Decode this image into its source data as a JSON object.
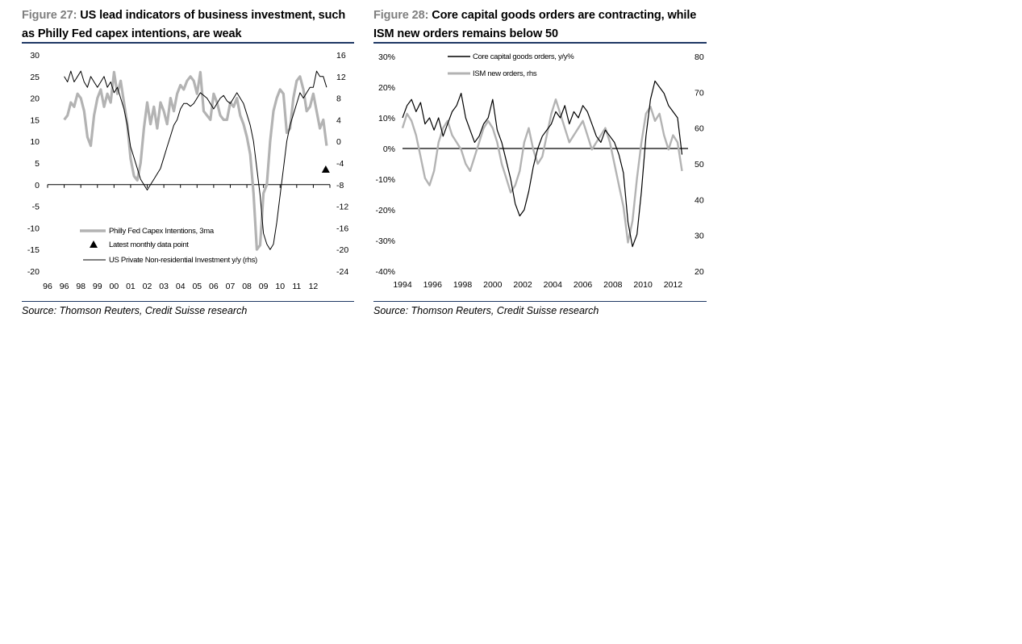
{
  "chart_data": [
    {
      "type": "line",
      "figure_number": "Figure 27:",
      "title": "US lead indicators of business investment, such as Philly Fed capex intentions, are weak",
      "source": "Source: Thomson Reuters, Credit Suisse research",
      "categories": [
        "96",
        "96",
        "98",
        "99",
        "00",
        "01",
        "02",
        "03",
        "04",
        "05",
        "06",
        "07",
        "08",
        "09",
        "10",
        "11",
        "12"
      ],
      "yticks_left": [
        "30",
        "25",
        "20",
        "15",
        "10",
        "5",
        "0",
        "-5",
        "-10",
        "-15",
        "-20"
      ],
      "yticks_right": [
        "16",
        "12",
        "8",
        "4",
        "0",
        "-4",
        "-8",
        "-12",
        "-16",
        "-20",
        "-24"
      ],
      "ylim_left": [
        -20,
        30
      ],
      "ylim_right": [
        -24,
        16
      ],
      "xlim": [
        1996.0,
        2013.0
      ],
      "legend": {
        "philly": "Philly Fed Capex Intentions, 3ma",
        "latest": "Latest monthly data point",
        "invest": "US Private Non-residential Investment y/y (rhs)"
      },
      "series": [
        {
          "name": "Philly Fed Capex Intentions, 3ma",
          "axis": "left",
          "color": "#b3b3b3",
          "x": [
            1997.0,
            1997.2,
            1997.4,
            1997.6,
            1997.8,
            1998.0,
            1998.2,
            1998.4,
            1998.6,
            1998.8,
            1999.0,
            1999.2,
            1999.4,
            1999.6,
            1999.8,
            2000.0,
            2000.2,
            2000.4,
            2000.6,
            2000.8,
            2001.0,
            2001.2,
            2001.4,
            2001.6,
            2001.8,
            2002.0,
            2002.2,
            2002.4,
            2002.6,
            2002.8,
            2003.0,
            2003.2,
            2003.4,
            2003.6,
            2003.8,
            2004.0,
            2004.2,
            2004.4,
            2004.6,
            2004.8,
            2005.0,
            2005.2,
            2005.4,
            2005.6,
            2005.8,
            2006.0,
            2006.2,
            2006.4,
            2006.6,
            2006.8,
            2007.0,
            2007.2,
            2007.4,
            2007.6,
            2007.8,
            2008.0,
            2008.2,
            2008.4,
            2008.6,
            2008.8,
            2009.0,
            2009.2,
            2009.4,
            2009.6,
            2009.8,
            2010.0,
            2010.2,
            2010.4,
            2010.6,
            2010.8,
            2011.0,
            2011.2,
            2011.4,
            2011.6,
            2011.8,
            2012.0,
            2012.2,
            2012.4,
            2012.6,
            2012.8
          ],
          "y": [
            15,
            16,
            19,
            18,
            21,
            20,
            17,
            11,
            9,
            16,
            20,
            22,
            18,
            21,
            19,
            26,
            21,
            24,
            19,
            14,
            6,
            2,
            1,
            5,
            13,
            19,
            14,
            18,
            13,
            19,
            17,
            14,
            20,
            17,
            21,
            23,
            22,
            24,
            25,
            24,
            21,
            26,
            17,
            16,
            15,
            21,
            19,
            16,
            15,
            15,
            19,
            18,
            20,
            16,
            14,
            11,
            7,
            -2,
            -15,
            -14,
            -2,
            0,
            10,
            17,
            20,
            22,
            21,
            12,
            13,
            20,
            24,
            25,
            22,
            17,
            18,
            21,
            17,
            13,
            15,
            9
          ],
          "latest_point": {
            "x": 2012.75,
            "y": 3.5
          }
        },
        {
          "name": "US Private Non-residential Investment y/y (rhs)",
          "axis": "right",
          "color": "#000000",
          "x": [
            1997.0,
            1997.2,
            1997.4,
            1997.6,
            1997.8,
            1998.0,
            1998.2,
            1998.4,
            1998.6,
            1998.8,
            1999.0,
            1999.2,
            1999.4,
            1999.6,
            1999.8,
            2000.0,
            2000.2,
            2000.4,
            2000.6,
            2000.8,
            2001.0,
            2001.2,
            2001.4,
            2001.6,
            2001.8,
            2002.0,
            2002.2,
            2002.4,
            2002.6,
            2002.8,
            2003.0,
            2003.2,
            2003.4,
            2003.6,
            2003.8,
            2004.0,
            2004.2,
            2004.4,
            2004.6,
            2004.8,
            2005.0,
            2005.2,
            2005.4,
            2005.6,
            2005.8,
            2006.0,
            2006.2,
            2006.4,
            2006.6,
            2006.8,
            2007.0,
            2007.2,
            2007.4,
            2007.6,
            2007.8,
            2008.0,
            2008.2,
            2008.4,
            2008.6,
            2008.8,
            2009.0,
            2009.2,
            2009.4,
            2009.6,
            2009.8,
            2010.0,
            2010.2,
            2010.4,
            2010.6,
            2010.8,
            2011.0,
            2011.2,
            2011.4,
            2011.6,
            2011.8,
            2012.0,
            2012.2,
            2012.4,
            2012.6,
            2012.8
          ],
          "y": [
            12,
            11,
            13,
            11,
            12,
            13,
            11,
            10,
            12,
            11,
            10,
            11,
            12,
            10,
            11,
            9,
            10,
            8,
            6,
            3,
            -1,
            -3,
            -5,
            -7,
            -8,
            -9,
            -8,
            -7,
            -6,
            -5,
            -3,
            -1,
            1,
            3,
            4,
            6,
            7,
            7,
            6.5,
            7,
            8,
            9,
            8.5,
            8,
            7,
            6,
            7,
            8,
            8.5,
            7.5,
            7,
            8,
            9,
            8,
            7,
            5,
            3,
            0,
            -5,
            -10,
            -17,
            -19,
            -20,
            -19,
            -15,
            -10,
            -5,
            0,
            3,
            5,
            7,
            9,
            8,
            9,
            10,
            10,
            13,
            12,
            12,
            10
          ]
        }
      ]
    },
    {
      "type": "line",
      "figure_number": "Figure 28:",
      "title": "Core capital goods orders are contracting, while ISM new orders remains below 50",
      "source": "Source: Thomson Reuters, Credit Suisse research",
      "categories": [
        "1994",
        "1996",
        "1998",
        "2000",
        "2002",
        "2004",
        "2006",
        "2008",
        "2010",
        "2012"
      ],
      "yticks_left": [
        "30%",
        "20%",
        "10%",
        "0%",
        "-10%",
        "-20%",
        "-30%",
        "-40%"
      ],
      "yticks_right": [
        "80",
        "70",
        "60",
        "50",
        "40",
        "30",
        "20"
      ],
      "ylim_left": [
        -40,
        30
      ],
      "ylim_right": [
        20,
        80
      ],
      "xlim": [
        1994.0,
        2013.0
      ],
      "legend": {
        "core": "Core capital goods orders, y/y%",
        "ism": "ISM new orders, rhs"
      },
      "series": [
        {
          "name": "Core capital goods orders, y/y%",
          "axis": "left",
          "color": "#000000",
          "x": [
            1994.0,
            1994.3,
            1994.6,
            1994.9,
            1995.2,
            1995.5,
            1995.8,
            1996.1,
            1996.4,
            1996.7,
            1997.0,
            1997.3,
            1997.6,
            1997.9,
            1998.2,
            1998.5,
            1998.8,
            1999.1,
            1999.4,
            1999.7,
            2000.0,
            2000.3,
            2000.6,
            2000.9,
            2001.2,
            2001.5,
            2001.8,
            2002.1,
            2002.4,
            2002.7,
            2003.0,
            2003.3,
            2003.6,
            2003.9,
            2004.2,
            2004.5,
            2004.8,
            2005.1,
            2005.4,
            2005.7,
            2006.0,
            2006.3,
            2006.6,
            2006.9,
            2007.2,
            2007.5,
            2007.8,
            2008.1,
            2008.4,
            2008.7,
            2009.0,
            2009.3,
            2009.6,
            2009.9,
            2010.2,
            2010.5,
            2010.8,
            2011.1,
            2011.4,
            2011.7,
            2012.0,
            2012.3,
            2012.6
          ],
          "y": [
            10,
            14,
            16,
            12,
            15,
            8,
            10,
            6,
            10,
            4,
            8,
            12,
            14,
            18,
            10,
            6,
            2,
            4,
            8,
            10,
            16,
            6,
            2,
            -4,
            -10,
            -18,
            -22,
            -20,
            -14,
            -6,
            0,
            4,
            6,
            8,
            12,
            10,
            14,
            8,
            12,
            10,
            14,
            12,
            8,
            4,
            2,
            6,
            4,
            2,
            -2,
            -8,
            -24,
            -32,
            -28,
            -14,
            4,
            16,
            22,
            20,
            18,
            14,
            12,
            10,
            -2
          ]
        },
        {
          "name": "ISM new orders, rhs",
          "axis": "right",
          "color": "#b3b3b3",
          "x": [
            1994.0,
            1994.3,
            1994.6,
            1994.9,
            1995.2,
            1995.5,
            1995.8,
            1996.1,
            1996.4,
            1996.7,
            1997.0,
            1997.3,
            1997.6,
            1997.9,
            1998.2,
            1998.5,
            1998.8,
            1999.1,
            1999.4,
            1999.7,
            2000.0,
            2000.3,
            2000.6,
            2000.9,
            2001.2,
            2001.5,
            2001.8,
            2002.1,
            2002.4,
            2002.7,
            2003.0,
            2003.3,
            2003.6,
            2003.9,
            2004.2,
            2004.5,
            2004.8,
            2005.1,
            2005.4,
            2005.7,
            2006.0,
            2006.3,
            2006.6,
            2006.9,
            2007.2,
            2007.5,
            2007.8,
            2008.1,
            2008.4,
            2008.7,
            2009.0,
            2009.3,
            2009.6,
            2009.9,
            2010.2,
            2010.5,
            2010.8,
            2011.1,
            2011.4,
            2011.7,
            2012.0,
            2012.3,
            2012.6
          ],
          "y": [
            60,
            64,
            62,
            58,
            52,
            46,
            44,
            48,
            56,
            60,
            62,
            58,
            56,
            54,
            50,
            48,
            52,
            56,
            60,
            62,
            60,
            56,
            50,
            46,
            42,
            44,
            48,
            56,
            60,
            54,
            50,
            52,
            58,
            64,
            68,
            64,
            60,
            56,
            58,
            60,
            62,
            58,
            54,
            56,
            58,
            60,
            56,
            50,
            44,
            38,
            28,
            34,
            46,
            56,
            64,
            66,
            62,
            64,
            58,
            54,
            58,
            56,
            48
          ]
        }
      ]
    }
  ]
}
